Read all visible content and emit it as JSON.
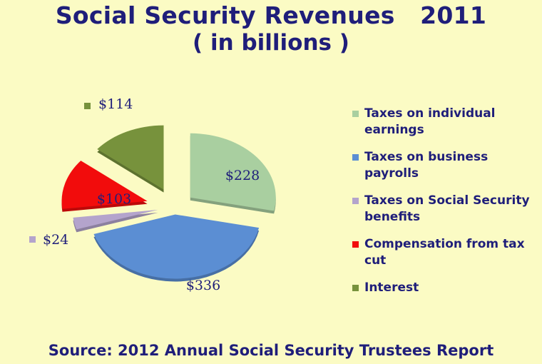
{
  "title_line1": "Social Security Revenues   2011",
  "title_line2": "( in billions )",
  "source": "Source: 2012 Annual Social Security Trustees Report",
  "chart_data": {
    "type": "pie",
    "exploded": true,
    "legend_position": "right",
    "slices": [
      {
        "name": "Taxes on individual earnings",
        "value": 228,
        "label": "$228",
        "color": "#a9cfa0"
      },
      {
        "name": "Taxes on business payrolls",
        "value": 336,
        "label": "$336",
        "color": "#5b8ed3"
      },
      {
        "name": "Taxes on Social Security benefits",
        "value": 24,
        "label": "$24",
        "color": "#b4a4cc"
      },
      {
        "name": "Compensation from tax cut",
        "value": 103,
        "label": "$103",
        "color": "#f20c0c"
      },
      {
        "name": "Interest",
        "value": 114,
        "label": "$114",
        "color": "#77923c"
      }
    ]
  }
}
